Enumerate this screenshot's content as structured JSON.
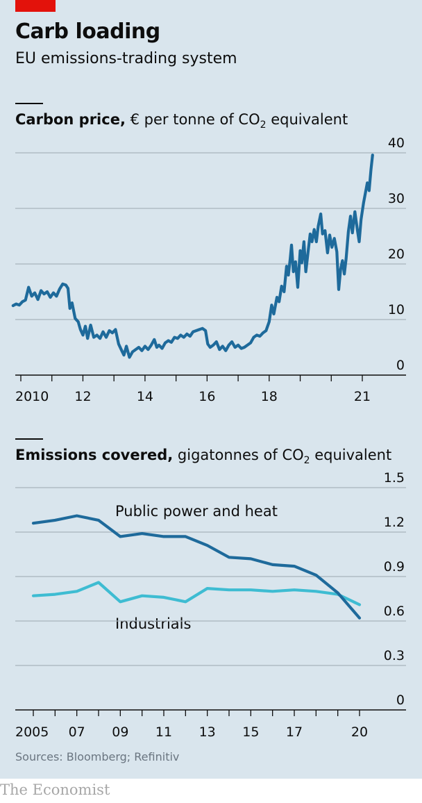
{
  "header": {
    "title": "Carb loading",
    "subtitle": "EU emissions-trading system"
  },
  "footer": {
    "source": "Sources: Bloomberg; Refinitiv",
    "brand": "The Economist"
  },
  "colors": {
    "background": "#d9e5ed",
    "accent_red": "#e3120b",
    "dark_blue": "#1e6a9b",
    "light_blue": "#3ebcd2"
  },
  "chart_data": [
    {
      "type": "line",
      "title_bold": "Carbon price,",
      "title_unit": "€ per tonne of CO",
      "title_sub": "2",
      "title_tail": " equivalent",
      "xlim": [
        2009.75,
        2021.6
      ],
      "ylim": [
        0,
        40
      ],
      "yticks": [
        "0",
        "10",
        "20",
        "30",
        "40"
      ],
      "xticks": [
        {
          "value": 2010,
          "label": "2010"
        },
        {
          "value": 2012,
          "label": "12"
        },
        {
          "value": 2014,
          "label": "14"
        },
        {
          "value": 2016,
          "label": "16"
        },
        {
          "value": 2018,
          "label": "18"
        },
        {
          "value": 2021,
          "label": "21"
        }
      ],
      "series": [
        {
          "color": "#1e6a9b",
          "points": [
            [
              2009.75,
              12.5
            ],
            [
              2009.85,
              12.8
            ],
            [
              2009.95,
              12.6
            ],
            [
              2010.05,
              13.2
            ],
            [
              2010.15,
              13.5
            ],
            [
              2010.25,
              15.8
            ],
            [
              2010.35,
              14.2
            ],
            [
              2010.45,
              14.8
            ],
            [
              2010.55,
              13.6
            ],
            [
              2010.65,
              15.2
            ],
            [
              2010.75,
              14.6
            ],
            [
              2010.85,
              15.0
            ],
            [
              2010.95,
              14.0
            ],
            [
              2011.05,
              14.8
            ],
            [
              2011.15,
              14.2
            ],
            [
              2011.25,
              15.5
            ],
            [
              2011.35,
              16.4
            ],
            [
              2011.45,
              16.2
            ],
            [
              2011.52,
              15.6
            ],
            [
              2011.58,
              12.0
            ],
            [
              2011.65,
              13.0
            ],
            [
              2011.75,
              10.2
            ],
            [
              2011.85,
              9.6
            ],
            [
              2011.92,
              8.2
            ],
            [
              2012.0,
              7.2
            ],
            [
              2012.08,
              8.8
            ],
            [
              2012.15,
              6.6
            ],
            [
              2012.25,
              9.0
            ],
            [
              2012.35,
              6.8
            ],
            [
              2012.45,
              7.2
            ],
            [
              2012.55,
              6.6
            ],
            [
              2012.65,
              7.8
            ],
            [
              2012.75,
              6.8
            ],
            [
              2012.85,
              8.0
            ],
            [
              2012.95,
              7.6
            ],
            [
              2013.05,
              8.2
            ],
            [
              2013.15,
              5.6
            ],
            [
              2013.25,
              4.4
            ],
            [
              2013.32,
              3.6
            ],
            [
              2013.4,
              5.2
            ],
            [
              2013.5,
              3.2
            ],
            [
              2013.6,
              4.2
            ],
            [
              2013.7,
              4.6
            ],
            [
              2013.8,
              5.0
            ],
            [
              2013.9,
              4.4
            ],
            [
              2014.0,
              5.2
            ],
            [
              2014.1,
              4.6
            ],
            [
              2014.2,
              5.4
            ],
            [
              2014.3,
              6.4
            ],
            [
              2014.38,
              5.0
            ],
            [
              2014.45,
              5.4
            ],
            [
              2014.55,
              4.8
            ],
            [
              2014.65,
              5.8
            ],
            [
              2014.75,
              6.2
            ],
            [
              2014.85,
              5.9
            ],
            [
              2014.95,
              6.8
            ],
            [
              2015.05,
              6.6
            ],
            [
              2015.15,
              7.2
            ],
            [
              2015.25,
              6.8
            ],
            [
              2015.35,
              7.4
            ],
            [
              2015.45,
              7.0
            ],
            [
              2015.55,
              7.8
            ],
            [
              2015.65,
              8.0
            ],
            [
              2015.75,
              8.2
            ],
            [
              2015.85,
              8.4
            ],
            [
              2015.95,
              8.0
            ],
            [
              2016.02,
              5.6
            ],
            [
              2016.1,
              5.0
            ],
            [
              2016.2,
              5.4
            ],
            [
              2016.3,
              6.0
            ],
            [
              2016.4,
              4.6
            ],
            [
              2016.5,
              5.2
            ],
            [
              2016.6,
              4.4
            ],
            [
              2016.7,
              5.4
            ],
            [
              2016.8,
              6.0
            ],
            [
              2016.9,
              5.0
            ],
            [
              2017.0,
              5.4
            ],
            [
              2017.1,
              4.8
            ],
            [
              2017.2,
              5.0
            ],
            [
              2017.3,
              5.4
            ],
            [
              2017.4,
              5.8
            ],
            [
              2017.5,
              6.8
            ],
            [
              2017.6,
              7.2
            ],
            [
              2017.7,
              7.0
            ],
            [
              2017.8,
              7.6
            ],
            [
              2017.9,
              8.0
            ],
            [
              2018.0,
              9.6
            ],
            [
              2018.08,
              12.6
            ],
            [
              2018.15,
              11.0
            ],
            [
              2018.25,
              14.0
            ],
            [
              2018.32,
              13.2
            ],
            [
              2018.4,
              16.0
            ],
            [
              2018.48,
              15.0
            ],
            [
              2018.56,
              19.6
            ],
            [
              2018.62,
              18.0
            ],
            [
              2018.68,
              21.0
            ],
            [
              2018.72,
              23.4
            ],
            [
              2018.78,
              18.6
            ],
            [
              2018.85,
              20.4
            ],
            [
              2018.92,
              15.8
            ],
            [
              2019.0,
              22.4
            ],
            [
              2019.05,
              20.2
            ],
            [
              2019.12,
              24.0
            ],
            [
              2019.18,
              18.6
            ],
            [
              2019.25,
              22.0
            ],
            [
              2019.32,
              25.4
            ],
            [
              2019.38,
              24.0
            ],
            [
              2019.45,
              26.2
            ],
            [
              2019.52,
              24.0
            ],
            [
              2019.58,
              26.8
            ],
            [
              2019.66,
              29.0
            ],
            [
              2019.72,
              25.4
            ],
            [
              2019.8,
              26.0
            ],
            [
              2019.88,
              22.0
            ],
            [
              2019.95,
              25.2
            ],
            [
              2020.02,
              23.0
            ],
            [
              2020.1,
              24.6
            ],
            [
              2020.18,
              22.2
            ],
            [
              2020.24,
              15.4
            ],
            [
              2020.3,
              19.0
            ],
            [
              2020.36,
              20.6
            ],
            [
              2020.42,
              18.2
            ],
            [
              2020.48,
              21.0
            ],
            [
              2020.55,
              25.8
            ],
            [
              2020.62,
              28.6
            ],
            [
              2020.68,
              25.6
            ],
            [
              2020.76,
              29.4
            ],
            [
              2020.84,
              26.2
            ],
            [
              2020.9,
              24.0
            ],
            [
              2020.96,
              28.0
            ],
            [
              2021.04,
              31.0
            ],
            [
              2021.1,
              32.8
            ],
            [
              2021.16,
              34.6
            ],
            [
              2021.22,
              33.2
            ],
            [
              2021.28,
              37.0
            ],
            [
              2021.33,
              39.6
            ]
          ]
        }
      ]
    },
    {
      "type": "line",
      "title_bold": "Emissions covered,",
      "title_unit": "gigatonnes of CO",
      "title_sub": "2",
      "title_tail": " equivalent",
      "xlim": [
        2004.5,
        2021
      ],
      "ylim": [
        0,
        1.5
      ],
      "yticks": [
        "0",
        "0.3",
        "0.6",
        "0.9",
        "1.2",
        "1.5"
      ],
      "x_all_ticks": [
        2005,
        2006,
        2007,
        2008,
        2009,
        2010,
        2011,
        2012,
        2013,
        2014,
        2015,
        2016,
        2017,
        2018,
        2019,
        2020
      ],
      "xticks": [
        {
          "value": 2005,
          "label": "2005"
        },
        {
          "value": 2007,
          "label": "07"
        },
        {
          "value": 2009,
          "label": "09"
        },
        {
          "value": 2011,
          "label": "11"
        },
        {
          "value": 2013,
          "label": "13"
        },
        {
          "value": 2015,
          "label": "15"
        },
        {
          "value": 2017,
          "label": "17"
        },
        {
          "value": 2020,
          "label": "20"
        }
      ],
      "x": [
        2005,
        2006,
        2007,
        2008,
        2009,
        2010,
        2011,
        2012,
        2013,
        2014,
        2015,
        2016,
        2017,
        2018,
        2019,
        2020
      ],
      "series": [
        {
          "name": "Public power and heat",
          "color": "#1e6a9b",
          "values": [
            1.26,
            1.28,
            1.31,
            1.28,
            1.17,
            1.19,
            1.17,
            1.17,
            1.11,
            1.03,
            1.02,
            0.98,
            0.97,
            0.91,
            0.79,
            0.62
          ]
        },
        {
          "name": "Industrials",
          "color": "#3ebcd2",
          "values": [
            0.77,
            0.78,
            0.8,
            0.86,
            0.73,
            0.77,
            0.76,
            0.73,
            0.82,
            0.81,
            0.81,
            0.8,
            0.81,
            0.8,
            0.78,
            0.71
          ]
        }
      ]
    }
  ]
}
